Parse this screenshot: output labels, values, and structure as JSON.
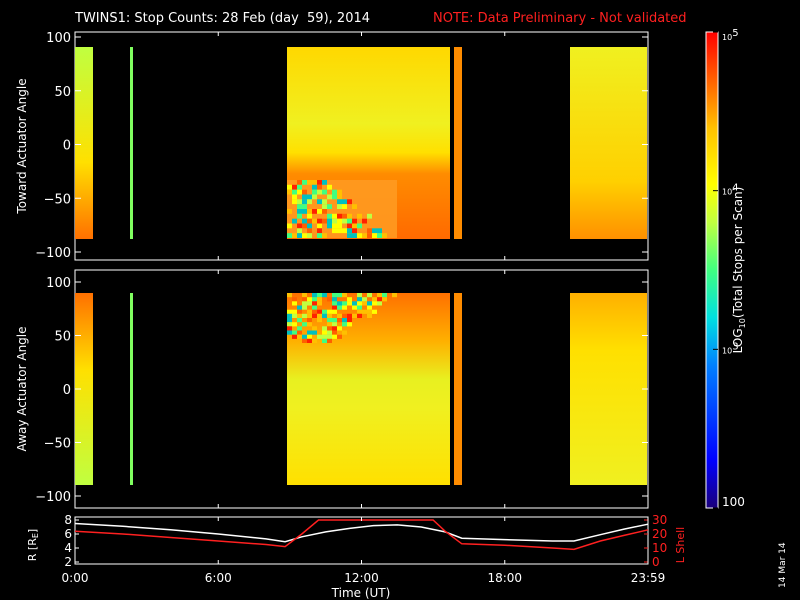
{
  "title": {
    "main": "TWINS1: Stop Counts: 28 Feb (day  59), 2014",
    "note": "NOTE: Data Preliminary - Not validated"
  },
  "stamp": "14 Mar 14",
  "colorbar": {
    "label": "LOG",
    "label_sub": "10",
    "label_rest": "(Total Stops per Scan)",
    "ticks": [
      {
        "base": "10",
        "exp": "5",
        "value": 100000
      },
      {
        "base": "10",
        "exp": "4",
        "value": 10000
      },
      {
        "base": "10",
        "exp": "3",
        "value": 1000
      },
      {
        "base": "100",
        "exp": "",
        "value": 100
      }
    ],
    "colors": [
      "#1a007a",
      "#0000ff",
      "#0080ff",
      "#00e0e0",
      "#40ff80",
      "#c0ff40",
      "#ffff00",
      "#ffc000",
      "#ff6000",
      "#ff0000"
    ]
  },
  "chart_data": [
    {
      "type": "heatmap",
      "ylabel": "Toward Actuator Angle",
      "ylim": [
        -100,
        100
      ],
      "yticks": [
        {
          "v": 100,
          "label": "100"
        },
        {
          "v": 50,
          "label": "50"
        },
        {
          "v": 0,
          "label": "0"
        },
        {
          "v": -50,
          "label": "−50"
        },
        {
          "v": -100,
          "label": "−100"
        }
      ],
      "xlim": [
        0,
        24
      ],
      "data_segments_hours": [
        [
          0,
          0.2
        ],
        [
          1.9,
          1.97
        ],
        [
          8.8,
          16.0
        ],
        [
          20.9,
          24
        ]
      ],
      "dominant_log_counts": 4.2
    },
    {
      "type": "heatmap",
      "ylabel": "Away Actuator Angle",
      "ylim": [
        -100,
        100
      ],
      "yticks": [
        {
          "v": 100,
          "label": "100"
        },
        {
          "v": 50,
          "label": "50"
        },
        {
          "v": 0,
          "label": "0"
        },
        {
          "v": -50,
          "label": "−50"
        },
        {
          "v": -100,
          "label": "−100"
        }
      ],
      "xlim": [
        0,
        24
      ],
      "data_segments_hours": [
        [
          0,
          0.2
        ],
        [
          1.9,
          1.97
        ],
        [
          8.8,
          16.0
        ],
        [
          20.9,
          24
        ]
      ],
      "dominant_log_counts": 4.2
    },
    {
      "type": "line",
      "ylabel_left": "R [R",
      "ylabel_left_sub": "E",
      "ylabel_left_end": "]",
      "ylabel_right": "L Shell",
      "ylim_left": [
        2,
        8
      ],
      "ylim_right": [
        0,
        30
      ],
      "yticks_left": [
        "2",
        "4",
        "6",
        "8"
      ],
      "yticks_right": [
        "0",
        "10",
        "20",
        "30"
      ],
      "xlabel": "Time (UT)",
      "xticks": [
        {
          "v": 0,
          "label": "0:00"
        },
        {
          "v": 6,
          "label": "6:00"
        },
        {
          "v": 12,
          "label": "12:00"
        },
        {
          "v": 18,
          "label": "18:00"
        },
        {
          "v": 24,
          "label": "23:59"
        }
      ],
      "series": [
        {
          "color": "#ffffff",
          "x": [
            0,
            2,
            4,
            6,
            8,
            8.8,
            9.5,
            10.5,
            11.5,
            12.5,
            13.5,
            14.5,
            15.5,
            16.2,
            18,
            20,
            20.9,
            22,
            23,
            24
          ],
          "y": [
            7.5,
            7.1,
            6.6,
            6.0,
            5.3,
            4.9,
            5.6,
            6.3,
            6.8,
            7.2,
            7.3,
            7.0,
            6.3,
            5.4,
            5.2,
            5.0,
            5.0,
            5.9,
            6.7,
            7.4
          ]
        },
        {
          "color": "#ff2020",
          "x": [
            0,
            2,
            4,
            6,
            8,
            8.8,
            9.5,
            10.2,
            15.0,
            15.5,
            16.2,
            18,
            20,
            20.9,
            22,
            23,
            24
          ],
          "y": [
            22,
            20,
            17.5,
            15,
            12.5,
            11,
            20,
            30,
            30,
            22,
            13,
            12,
            10,
            9,
            15,
            19,
            23
          ]
        }
      ]
    }
  ]
}
